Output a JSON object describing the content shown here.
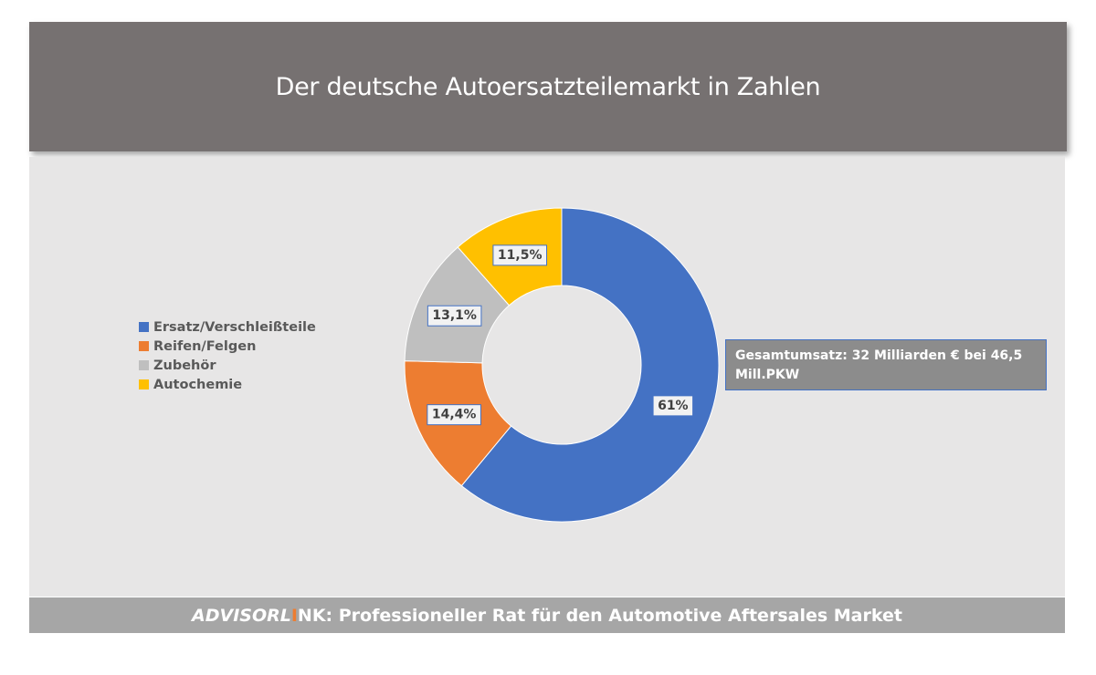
{
  "header": {
    "title": "Der deutsche Autoersatzteilemarkt in Zahlen"
  },
  "chart_data": {
    "type": "pie",
    "title": "",
    "categories": [
      "Ersatz/Verschleißteile",
      "Reifen/Felgen",
      "Zubehör",
      "Autochemie"
    ],
    "values": [
      61,
      14.4,
      13.1,
      11.5
    ],
    "labels": [
      "61%",
      "14,4%",
      "13,1%",
      "11,5%"
    ],
    "colors": [
      "#4472c4",
      "#ed7d31",
      "#bfbfbf",
      "#ffc000"
    ],
    "legend_position": "left",
    "hole": true
  },
  "callout": {
    "text": "Gesamtumsatz: 32 Milliarden € bei 46,5 Mill.PKW"
  },
  "footer": {
    "brand_start": "ADVISORL",
    "brand_accent": "I",
    "brand_end": "NK",
    "tagline": ": Professioneller Rat für den Automotive Aftersales Market"
  }
}
